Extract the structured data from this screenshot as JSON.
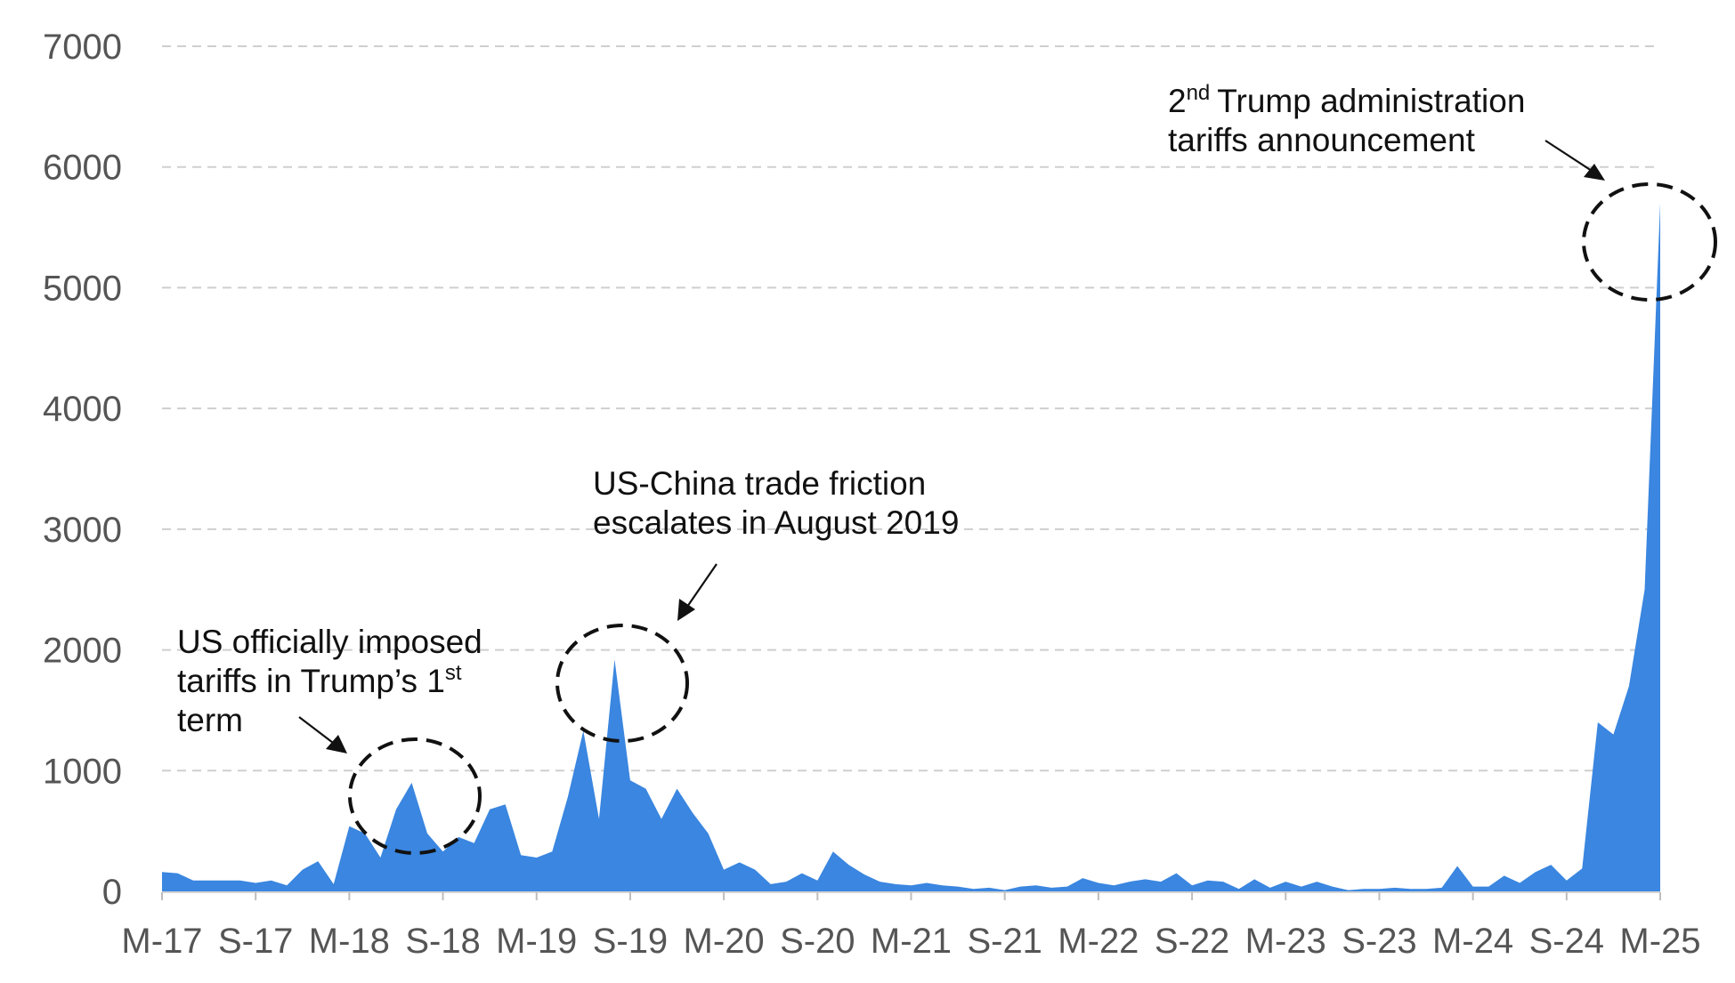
{
  "chart_data": {
    "type": "area",
    "title": "",
    "xlabel": "",
    "ylabel": "",
    "ylim": [
      0,
      7000
    ],
    "y_ticks": [
      "0",
      "1000",
      "2000",
      "3000",
      "4000",
      "5000",
      "6000",
      "7000"
    ],
    "grid": true,
    "legend": "none",
    "series_color": "#3a86e0",
    "x_tick_labels": [
      "M-17",
      "S-17",
      "M-18",
      "S-18",
      "M-19",
      "S-19",
      "M-20",
      "S-20",
      "M-21",
      "S-21",
      "M-22",
      "S-22",
      "M-23",
      "S-23",
      "M-24",
      "S-24",
      "M-25"
    ],
    "x_tick_index": [
      0,
      6,
      12,
      18,
      24,
      30,
      36,
      42,
      48,
      54,
      60,
      66,
      72,
      78,
      84,
      90,
      96
    ],
    "values": [
      160,
      150,
      90,
      90,
      90,
      90,
      70,
      90,
      50,
      180,
      250,
      60,
      540,
      480,
      280,
      680,
      900,
      480,
      330,
      450,
      400,
      680,
      720,
      300,
      280,
      330,
      780,
      1330,
      600,
      1920,
      920,
      850,
      600,
      850,
      650,
      480,
      180,
      240,
      180,
      60,
      80,
      150,
      90,
      330,
      220,
      140,
      80,
      60,
      50,
      70,
      50,
      40,
      20,
      30,
      10,
      40,
      50,
      30,
      40,
      110,
      70,
      50,
      80,
      100,
      80,
      150,
      50,
      90,
      80,
      20,
      100,
      30,
      80,
      40,
      80,
      40,
      10,
      20,
      20,
      30,
      20,
      20,
      30,
      210,
      40,
      40,
      130,
      70,
      160,
      220,
      90,
      190,
      1400,
      1300,
      1700,
      2500,
      5700
    ],
    "annotations": [
      {
        "lines": [
          "US officially imposed",
          "tariffs in Trump’s 1",
          "term"
        ],
        "sup": "st"
      },
      {
        "lines": [
          "US-China trade friction",
          "escalates in August 2019"
        ]
      },
      {
        "lines": [
          "2",
          "Trump administration",
          "tariffs announcement"
        ],
        "sup": "nd"
      }
    ]
  }
}
